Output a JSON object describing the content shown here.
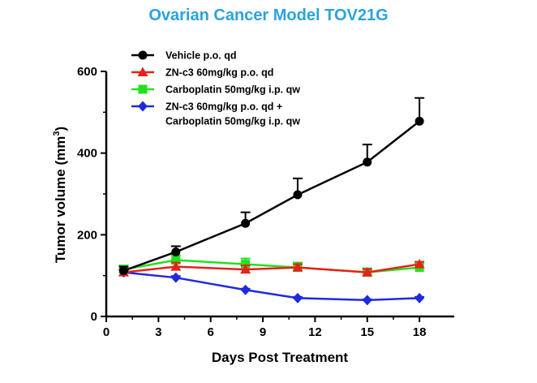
{
  "chart_data": {
    "type": "line",
    "title": "Ovarian Cancer Model TOV21G",
    "xlabel": "Days Post Treatment",
    "ylabel": "Tumor volume (mm",
    "ylabel_sup": "3",
    "ylabel_end": ")",
    "xlim": [
      0,
      20
    ],
    "ylim": [
      0,
      600
    ],
    "xticks": [
      0,
      3,
      6,
      9,
      12,
      15,
      18
    ],
    "yticks": [
      0,
      200,
      400,
      600
    ],
    "x": [
      1,
      4,
      8,
      11,
      15,
      18
    ],
    "series": [
      {
        "name": "Vehicle p.o. qd",
        "color": "#000000",
        "marker": "circle",
        "values": [
          112,
          158,
          228,
          298,
          378,
          478
        ],
        "errors": [
          10,
          14,
          27,
          40,
          43,
          57
        ]
      },
      {
        "name": "ZN-c3 60mg/kg p.o. qd",
        "color": "#e8211a",
        "marker": "triangle",
        "values": [
          108,
          122,
          115,
          120,
          108,
          128
        ],
        "errors": [
          8,
          10,
          10,
          8,
          8,
          6
        ]
      },
      {
        "name": "Carboplatin 50mg/kg i.p. qw",
        "color": "#22e11f",
        "marker": "square",
        "values": [
          115,
          138,
          128,
          120,
          108,
          120
        ],
        "errors": [
          10,
          12,
          14,
          12,
          10,
          10
        ]
      },
      {
        "name_line1": "ZN-c3 60mg/kg p.o. qd +",
        "name_line2": "Carboplatin 50mg/kg i.p. qw",
        "color": "#1f2ae0",
        "marker": "diamond",
        "values": [
          108,
          95,
          65,
          45,
          40,
          45
        ],
        "errors": [
          5,
          4,
          3,
          3,
          2,
          3
        ]
      }
    ]
  }
}
